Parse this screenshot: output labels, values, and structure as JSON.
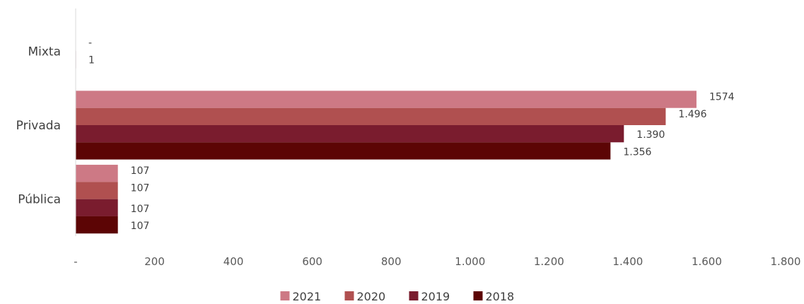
{
  "chart_data": {
    "type": "bar",
    "orientation": "horizontal",
    "title": "",
    "xlabel": "",
    "ylabel": "",
    "xlim": [
      0,
      1800
    ],
    "x_ticks": [
      0,
      200,
      400,
      600,
      800,
      1000,
      1200,
      1400,
      1600,
      1800
    ],
    "x_tick_labels": [
      "-",
      "200",
      "400",
      "600",
      "800",
      "1.000",
      "1.200",
      "1.400",
      "1.600",
      "1.800"
    ],
    "grid": false,
    "legend_position": "bottom",
    "categories": [
      "Mixta",
      "Privada",
      "Pública"
    ],
    "series": [
      {
        "name": "2021",
        "color": "#cd7985",
        "values": [
          0,
          1574,
          107
        ],
        "labels": [
          "",
          "1574",
          "107"
        ]
      },
      {
        "name": "2020",
        "color": "#b05050",
        "values": [
          0,
          1496,
          107
        ],
        "labels": [
          "-",
          "1.496",
          "107"
        ]
      },
      {
        "name": "2019",
        "color": "#7a1c2e",
        "values": [
          1,
          1390,
          107
        ],
        "labels": [
          "1",
          "1.390",
          "107"
        ]
      },
      {
        "name": "2018",
        "color": "#5c0505",
        "values": [
          0,
          1356,
          107
        ],
        "labels": [
          "",
          "1.356",
          "107"
        ]
      }
    ]
  }
}
